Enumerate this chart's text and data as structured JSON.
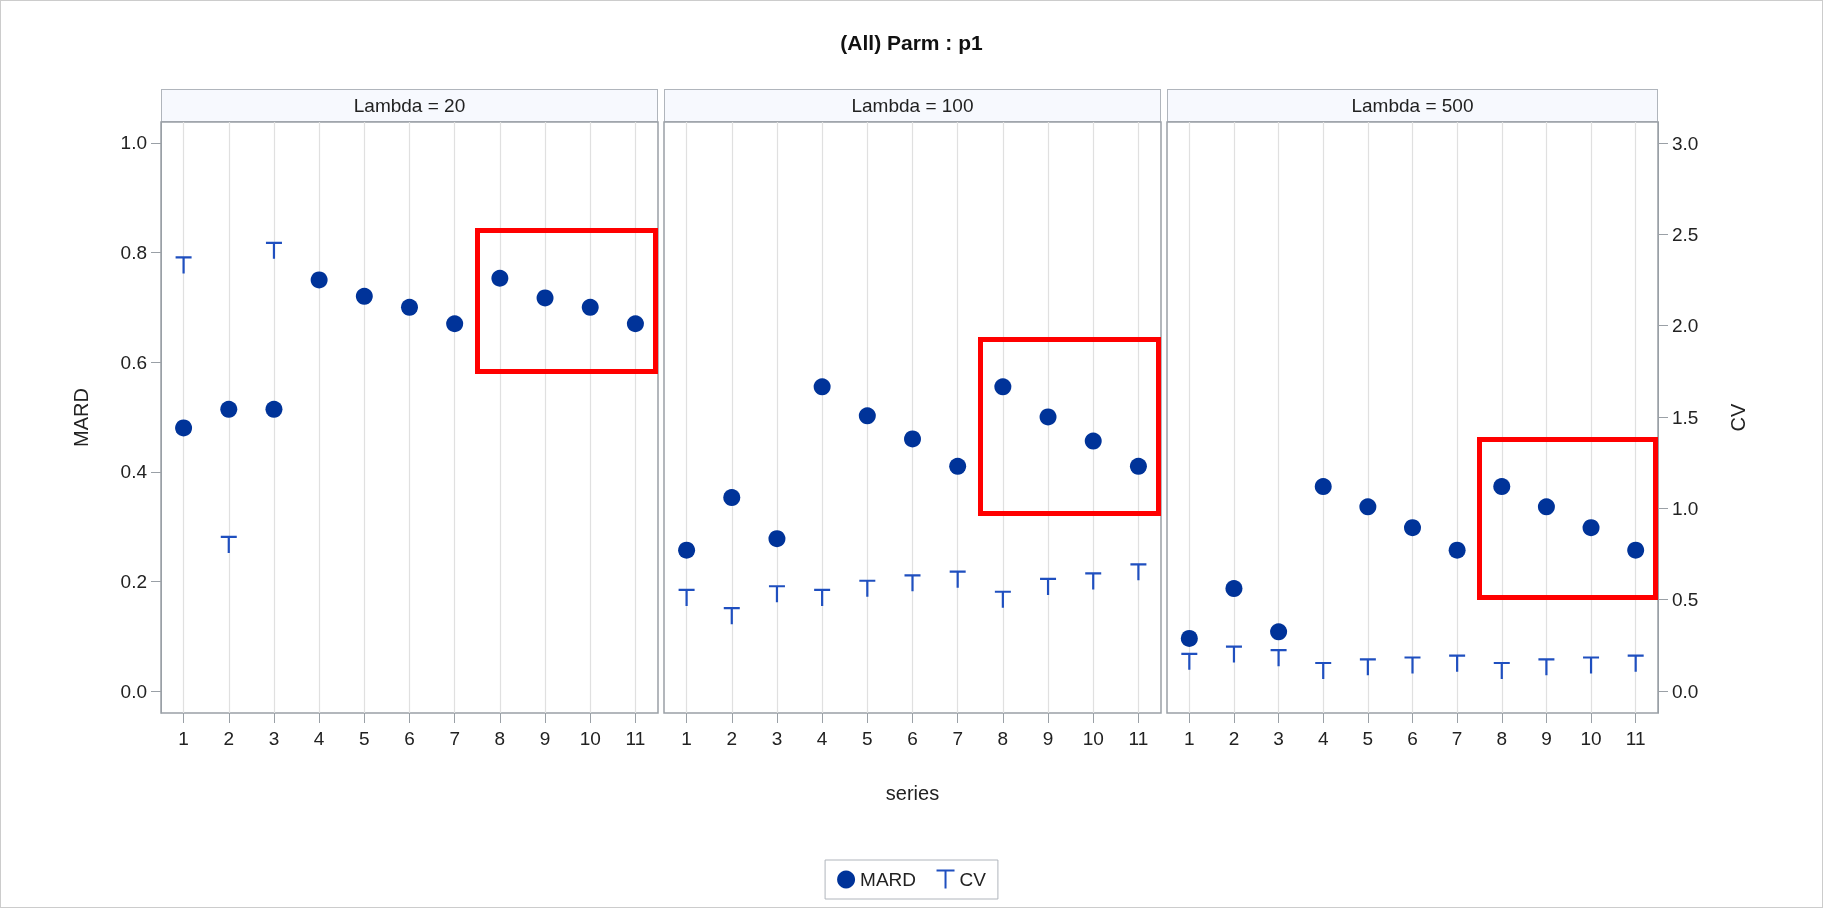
{
  "chart_data": [
    {
      "type": "scatter",
      "subtitle": "Lambda = 20",
      "ylabel": "MARD",
      "categories": [
        "1",
        "2",
        "3",
        "4",
        "5",
        "6",
        "7",
        "8",
        "9",
        "10",
        "11"
      ],
      "series": [
        {
          "color": "#003399",
          "marker": "circle",
          "values": [
            0.48,
            0.514,
            0.514,
            0.75,
            0.72,
            0.7,
            0.67,
            0.753,
            0.717,
            0.7,
            0.67
          ]
        },
        {
          "color": "#1f4fbf",
          "marker": "cross",
          "axis": "y2",
          "values": [
            2.33,
            0.8,
            2.41,
            null,
            null,
            null,
            null,
            null,
            null,
            null,
            null
          ]
        }
      ],
      "ylim": [
        -0.04,
        1.038
      ],
      "yticks": [
        {
          "value": 0,
          "label": "0.0"
        },
        {
          "value": 0.2,
          "label": "0.2"
        },
        {
          "value": 0.4,
          "label": "0.4"
        },
        {
          "value": 0.6,
          "label": "0.6"
        },
        {
          "value": 0.8,
          "label": "0.8"
        },
        {
          "value": 1,
          "label": "1.0"
        }
      ],
      "y2lim": [
        -0.12,
        3.115
      ],
      "grid": "x",
      "tick_labels": [
        "x",
        "y"
      ]
    },
    {
      "type": "scatter",
      "title": "(All) Parm : p1",
      "subtitle": "Lambda = 100",
      "xlabel": "series",
      "categories": [
        "1",
        "2",
        "3",
        "4",
        "5",
        "6",
        "7",
        "8",
        "9",
        "10",
        "11"
      ],
      "series": [
        {
          "name": "MARD",
          "color": "#003399",
          "marker": "circle",
          "values": [
            0.257,
            0.353,
            0.278,
            0.555,
            0.502,
            0.46,
            0.41,
            0.555,
            0.5,
            0.456,
            0.41
          ]
        },
        {
          "name": "CV",
          "color": "#1f4fbf",
          "marker": "cross",
          "axis": "y2",
          "values": [
            0.51,
            0.41,
            0.53,
            0.51,
            0.56,
            0.59,
            0.61,
            0.5,
            0.57,
            0.6,
            0.65
          ]
        }
      ],
      "ylim": [
        -0.04,
        1.038
      ],
      "y2lim": [
        -0.12,
        3.115
      ],
      "grid": "x",
      "legend": "bottom",
      "tick_labels": "x"
    },
    {
      "type": "scatter",
      "subtitle": "Lambda = 500",
      "y2label": "CV",
      "categories": [
        "1",
        "2",
        "3",
        "4",
        "5",
        "6",
        "7",
        "8",
        "9",
        "10",
        "11"
      ],
      "series": [
        {
          "color": "#003399",
          "marker": "circle",
          "values": [
            0.096,
            0.187,
            0.108,
            0.373,
            0.336,
            0.298,
            0.257,
            0.373,
            0.336,
            0.298,
            0.257
          ]
        },
        {
          "color": "#1f4fbf",
          "marker": "cross",
          "axis": "y2",
          "values": [
            0.16,
            0.2,
            0.18,
            0.11,
            0.13,
            0.14,
            0.15,
            0.11,
            0.13,
            0.14,
            0.15
          ]
        }
      ],
      "ylim": [
        -0.04,
        1.038
      ],
      "y2lim": [
        -0.12,
        3.115
      ],
      "y2ticks": [
        {
          "value": 0,
          "label": "0.0"
        },
        {
          "value": 0.5,
          "label": "0.5"
        },
        {
          "value": 1,
          "label": "1.0"
        },
        {
          "value": 1.5,
          "label": "1.5"
        },
        {
          "value": 2,
          "label": "2.0"
        },
        {
          "value": 2.5,
          "label": "2.5"
        },
        {
          "value": 3,
          "label": "3.0"
        }
      ],
      "grid": "x",
      "tick_labels": [
        "x",
        "y2"
      ]
    }
  ]
}
